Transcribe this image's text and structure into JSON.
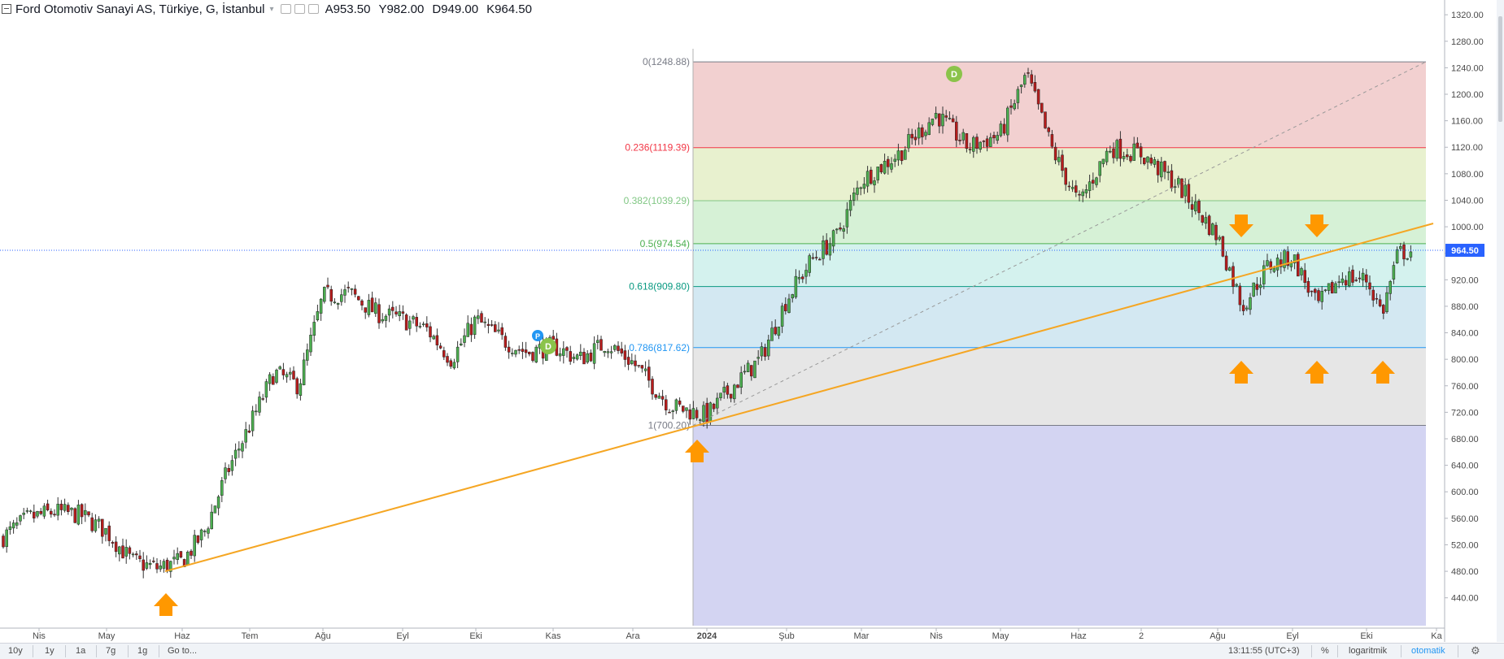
{
  "header": {
    "symbol": "Ford Otomotiv Sanayi AS, Türkiye, G, İstanbul",
    "open": "A953.50",
    "high": "Y982.00",
    "low": "D949.00",
    "close": "K964.50"
  },
  "chart_data": {
    "type": "candlestick",
    "title": "Ford Otomotiv Sanayi AS, Türkiye, G, İstanbul",
    "ylim": [
      420,
      1330
    ],
    "y_ticks": [
      "1320.00",
      "1280.00",
      "1240.00",
      "1200.00",
      "1160.00",
      "1120.00",
      "1080.00",
      "1040.00",
      "1000.00",
      "960.00",
      "920.00",
      "880.00",
      "840.00",
      "800.00",
      "760.00",
      "720.00",
      "680.00",
      "640.00",
      "600.00",
      "560.00",
      "520.00",
      "480.00",
      "440.00"
    ],
    "x_ticks": [
      "Nis",
      "May",
      "Haz",
      "Tem",
      "Ağu",
      "Eyl",
      "Eki",
      "Kas",
      "Ara",
      "2024",
      "Şub",
      "Mar",
      "Nis",
      "May",
      "Haz",
      "2",
      "Ağu",
      "Eyl",
      "Eki",
      "Ka"
    ],
    "last_price_label": "964.50",
    "close_path": [
      [
        "Nis",
        530
      ],
      [
        "",
        560
      ],
      [
        "",
        570
      ],
      [
        "",
        565
      ],
      [
        "May",
        540
      ],
      [
        "",
        495
      ],
      [
        "",
        485
      ],
      [
        "Haz",
        495
      ],
      [
        "",
        540
      ],
      [
        "",
        630
      ],
      [
        "Tem",
        700
      ],
      [
        "",
        780
      ],
      [
        "",
        760
      ],
      [
        "Ağu",
        895
      ],
      [
        "",
        900
      ],
      [
        "",
        870
      ],
      [
        "Eyl",
        860
      ],
      [
        "",
        845
      ],
      [
        "",
        800
      ],
      [
        "Eki",
        860
      ],
      [
        "",
        830
      ],
      [
        "",
        810
      ],
      [
        "Kas",
        820
      ],
      [
        "",
        800
      ],
      [
        "",
        825
      ],
      [
        "Ara",
        795
      ],
      [
        "",
        730
      ],
      [
        "2024",
        715
      ],
      [
        "",
        760
      ],
      [
        "",
        800
      ],
      [
        "Şub",
        890
      ],
      [
        "",
        950
      ],
      [
        "",
        985
      ],
      [
        "Mar",
        1070
      ],
      [
        "",
        1110
      ],
      [
        "Nis",
        1170
      ],
      [
        "",
        1120
      ],
      [
        "May",
        1140
      ],
      [
        "",
        1230
      ],
      [
        "",
        1115
      ],
      [
        "Haz",
        1035
      ],
      [
        "",
        1120
      ],
      [
        "2",
        1110
      ],
      [
        "",
        1060
      ],
      [
        "Ağu",
        985
      ],
      [
        "",
        880
      ],
      [
        "",
        940
      ],
      [
        "Eyl",
        955
      ],
      [
        "",
        880
      ],
      [
        "",
        925
      ],
      [
        "Eki",
        920
      ],
      [
        "",
        870
      ],
      [
        "",
        960
      ],
      [
        "",
        964.5
      ]
    ],
    "fibonacci": {
      "levels": [
        {
          "label": "0(1248.88)",
          "price": 1248.88,
          "color": "#787b86"
        },
        {
          "label": "0.236(1119.39)",
          "price": 1119.39,
          "color": "#f23645"
        },
        {
          "label": "0.382(1039.29)",
          "price": 1039.29,
          "color": "#81c784"
        },
        {
          "label": "0.5(974.54)",
          "price": 974.54,
          "color": "#4caf50"
        },
        {
          "label": "0.618(909.80)",
          "price": 909.8,
          "color": "#089981"
        },
        {
          "label": "0.786(817.62)",
          "price": 817.62,
          "color": "#2196f3"
        },
        {
          "label": "1(700.20)",
          "price": 700.2,
          "color": "#787b86"
        }
      ],
      "zones": [
        "#f2d0d0",
        "#e8f1cf",
        "#d6f1d6",
        "#d4f2ee",
        "#d3e8f2",
        "#e6e6e6",
        "#d3d4f2"
      ]
    },
    "trendline": {
      "color": "#f5a623",
      "points": [
        [
          "Haz",
          480
        ],
        [
          "",
          1005
        ]
      ]
    },
    "markers": [
      {
        "label": "P",
        "color": "#2196f3"
      },
      {
        "label": "D",
        "color": "#8bc34a"
      },
      {
        "label": "D",
        "color": "#8bc34a"
      }
    ]
  },
  "bottombar": {
    "ranges": [
      "10y",
      "1y",
      "1a",
      "7g",
      "1g"
    ],
    "goto": "Go to...",
    "time": "13:11:55 (UTC+3)",
    "percent": "%",
    "log": "logaritmik",
    "auto": "otomatik"
  },
  "colors": {
    "up": "#4caf50",
    "down": "#b71c1c",
    "arrow": "#ff9800",
    "last_line": "#2962ff"
  }
}
